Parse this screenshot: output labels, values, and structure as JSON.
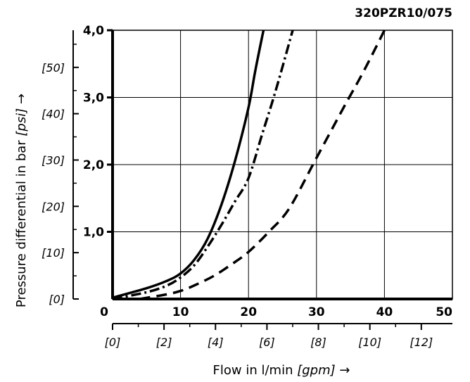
{
  "chart_data": {
    "type": "line",
    "title": "320PZR10/075",
    "xlabel": {
      "main": "Flow in l/min ",
      "unit": "[gpm]",
      "arrow": " →"
    },
    "ylabel": {
      "main": "Pressure differential in bar ",
      "unit": "[psi]",
      "arrow": " →"
    },
    "xlim": [
      0,
      50
    ],
    "ylim": [
      0,
      4
    ],
    "grid": true,
    "x_ticks": [
      "0",
      "10",
      "20",
      "30",
      "40",
      "50"
    ],
    "y_ticks": [
      "4,0",
      "3,0",
      "2,0",
      "1,0"
    ],
    "x_ticks_secondary": [
      "[0]",
      "[2]",
      "[4]",
      "[6]",
      "[8]",
      "[10]",
      "[12]"
    ],
    "y_ticks_secondary": [
      "[50]",
      "[40]",
      "[30]",
      "[20]",
      "[10]",
      "[0]"
    ],
    "series": [
      {
        "style": "solid",
        "x": [
          0,
          5,
          8,
          10,
          12,
          14,
          16,
          18,
          20,
          21,
          22.2
        ],
        "y": [
          0.02,
          0.16,
          0.27,
          0.38,
          0.58,
          0.9,
          1.4,
          2.05,
          2.85,
          3.4,
          4.0
        ]
      },
      {
        "style": "dash-dot",
        "x": [
          0,
          5,
          8,
          10,
          12,
          14,
          16,
          18,
          20,
          22,
          24,
          26.5
        ],
        "y": [
          0,
          0.1,
          0.2,
          0.32,
          0.5,
          0.78,
          1.1,
          1.45,
          1.8,
          2.45,
          3.1,
          4.0
        ]
      },
      {
        "style": "dashed",
        "x": [
          4,
          8,
          10,
          12,
          15,
          18,
          20,
          23,
          26,
          30,
          34,
          37,
          40
        ],
        "y": [
          0,
          0.07,
          0.12,
          0.2,
          0.35,
          0.55,
          0.7,
          1.0,
          1.35,
          2.1,
          2.85,
          3.4,
          4.0
        ]
      }
    ]
  }
}
